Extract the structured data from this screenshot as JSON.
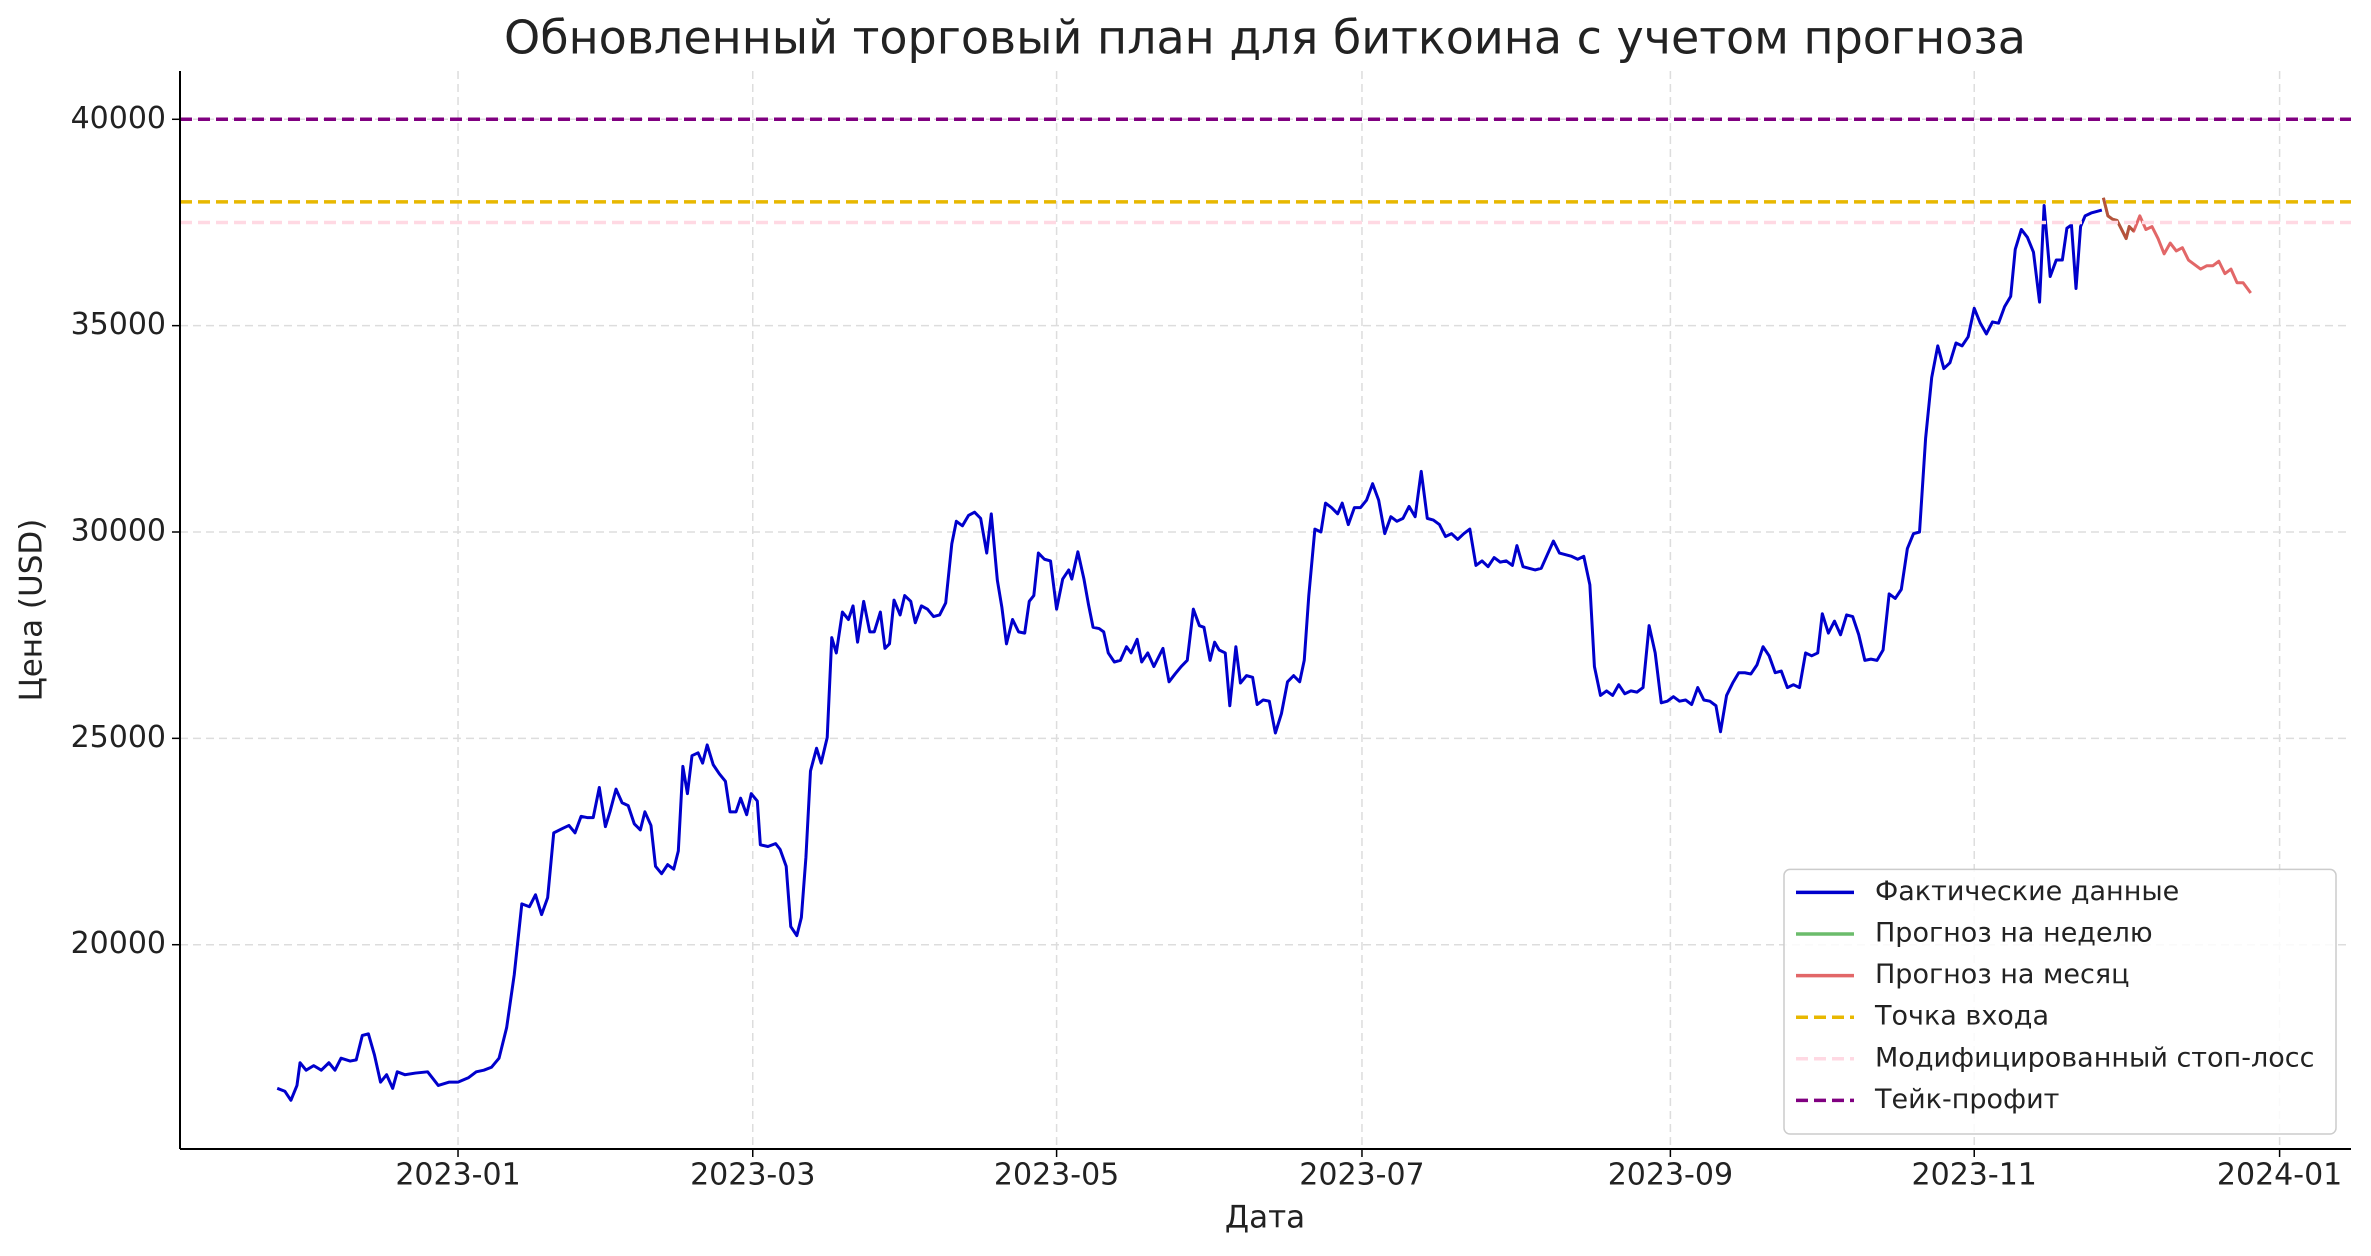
{
  "chart_data": {
    "type": "line",
    "title": "Обновленный торговый план для биткоина с учетом прогноза",
    "xlabel": "Дата",
    "ylabel": "Цена (USD)",
    "xlim": [
      -0.83,
      13.46
    ],
    "xticks": [
      {
        "value": 1.0,
        "label": "2023-01"
      },
      {
        "value": 2.94,
        "label": "2023-03"
      },
      {
        "value": 4.94,
        "label": "2023-05"
      },
      {
        "value": 6.95,
        "label": "2023-07"
      },
      {
        "value": 8.98,
        "label": "2023-09"
      },
      {
        "value": 10.98,
        "label": "2023-11"
      },
      {
        "value": 12.99,
        "label": "2024-01"
      }
    ],
    "ylim": [
      15050,
      41170
    ],
    "yticks": [
      20000,
      25000,
      30000,
      35000,
      40000
    ],
    "grid": true,
    "legend": "lower right",
    "series": [
      {
        "name": "Фактические данные",
        "color": "#0000cc",
        "alpha": 1,
        "x": [
          -0.19,
          -0.14,
          -0.1,
          -0.06,
          -0.04,
          0.0,
          0.05,
          0.1,
          0.15,
          0.19,
          0.23,
          0.29,
          0.33,
          0.37,
          0.41,
          0.45,
          0.49,
          0.53,
          0.57,
          0.6,
          0.65,
          0.72,
          0.8,
          0.87,
          0.94,
          1.0,
          1.07,
          1.12,
          1.17,
          1.22,
          1.27,
          1.32,
          1.37,
          1.42,
          1.47,
          1.51,
          1.55,
          1.59,
          1.63,
          1.69,
          1.73,
          1.77,
          1.81,
          1.85,
          1.89,
          1.93,
          1.97,
          2.0,
          2.04,
          2.08,
          2.12,
          2.16,
          2.2,
          2.23,
          2.27,
          2.3,
          2.34,
          2.38,
          2.42,
          2.45,
          2.48,
          2.51,
          2.54,
          2.58,
          2.61,
          2.64,
          2.68,
          2.72,
          2.76,
          2.79,
          2.83,
          2.86,
          2.9,
          2.93,
          2.97,
          2.99,
          3.04,
          3.09,
          3.12,
          3.16,
          3.19,
          3.23,
          3.26,
          3.29,
          3.32,
          3.36,
          3.39,
          3.43,
          3.46,
          3.49,
          3.53,
          3.57,
          3.6,
          3.63,
          3.67,
          3.71,
          3.74,
          3.78,
          3.81,
          3.84,
          3.87,
          3.91,
          3.94,
          3.98,
          4.01,
          4.05,
          4.09,
          4.13,
          4.17,
          4.21,
          4.25,
          4.28,
          4.32,
          4.36,
          4.4,
          4.44,
          4.48,
          4.51,
          4.55,
          4.58,
          4.61,
          4.65,
          4.69,
          4.73,
          4.76,
          4.79,
          4.82,
          4.86,
          4.9,
          4.94,
          4.98,
          5.02,
          5.04,
          5.08,
          5.12,
          5.15,
          5.18,
          5.22,
          5.25,
          5.28,
          5.32,
          5.36,
          5.4,
          5.43,
          5.47,
          5.5,
          5.54,
          5.58,
          5.64,
          5.68,
          5.72,
          5.76,
          5.8,
          5.84,
          5.88,
          5.91,
          5.95,
          5.98,
          6.01,
          6.05,
          6.08,
          6.12,
          6.15,
          6.19,
          6.23,
          6.26,
          6.3,
          6.34,
          6.38,
          6.42,
          6.46,
          6.5,
          6.54,
          6.57,
          6.6,
          6.64,
          6.68,
          6.71,
          6.75,
          6.79,
          6.82,
          6.86,
          6.9,
          6.94,
          6.98,
          7.02,
          7.06,
          7.1,
          7.14,
          7.18,
          7.22,
          7.26,
          7.3,
          7.34,
          7.38,
          7.42,
          7.46,
          7.5,
          7.54,
          7.58,
          7.62,
          7.66,
          7.7,
          7.74,
          7.78,
          7.82,
          7.86,
          7.9,
          7.94,
          7.97,
          8.01,
          8.05,
          8.09,
          8.13,
          8.17,
          8.21,
          8.25,
          8.29,
          8.33,
          8.37,
          8.41,
          8.45,
          8.48,
          8.52,
          8.56,
          8.6,
          8.64,
          8.68,
          8.72,
          8.76,
          8.8,
          8.84,
          8.88,
          8.92,
          8.96,
          9.0,
          9.04,
          9.08,
          9.12,
          9.16,
          9.2,
          9.24,
          9.28,
          9.31,
          9.35,
          9.39,
          9.43,
          9.47,
          9.51,
          9.55,
          9.59,
          9.63,
          9.67,
          9.71,
          9.75,
          9.79,
          9.83,
          9.87,
          9.91,
          9.95,
          9.98,
          10.02,
          10.06,
          10.1,
          10.14,
          10.18,
          10.22,
          10.26,
          10.3,
          10.34,
          10.38,
          10.42,
          10.46,
          10.5,
          10.54,
          10.58,
          10.62,
          10.66,
          10.7,
          10.74,
          10.78,
          10.82,
          10.86,
          10.9,
          10.94,
          10.98,
          11.02,
          11.06,
          11.1,
          11.14,
          11.18,
          11.22,
          11.25,
          11.29,
          11.33,
          11.37,
          11.41,
          11.44,
          11.48,
          11.52,
          11.56,
          11.59,
          11.62,
          11.65,
          11.68,
          11.71,
          11.75,
          11.79,
          11.82
        ],
        "values": [
          16520,
          16450,
          16230,
          16590,
          17140,
          16960,
          17070,
          16960,
          17140,
          16960,
          17250,
          17180,
          17210,
          17800,
          17840,
          17330,
          16670,
          16850,
          16520,
          16920,
          16850,
          16890,
          16920,
          16590,
          16670,
          16670,
          16780,
          16920,
          16960,
          17030,
          17250,
          17990,
          19270,
          20990,
          20920,
          21210,
          20730,
          21140,
          22710,
          22820,
          22890,
          22710,
          23110,
          23080,
          23080,
          23810,
          22860,
          23220,
          23770,
          23440,
          23370,
          22930,
          22780,
          23220,
          22890,
          21900,
          21720,
          21940,
          21830,
          22270,
          24320,
          23660,
          24580,
          24650,
          24400,
          24840,
          24360,
          24140,
          23960,
          23220,
          23220,
          23550,
          23150,
          23660,
          23480,
          22420,
          22380,
          22450,
          22310,
          21900,
          20440,
          20220,
          20660,
          22120,
          24210,
          24760,
          24400,
          25020,
          27440,
          27070,
          28060,
          27880,
          28210,
          27330,
          28320,
          27580,
          27580,
          28060,
          27180,
          27290,
          28350,
          27990,
          28460,
          28320,
          27800,
          28210,
          28130,
          27950,
          27990,
          28280,
          29710,
          30260,
          30150,
          30400,
          30480,
          30330,
          29490,
          30440,
          28830,
          28170,
          27290,
          27880,
          27580,
          27550,
          28320,
          28460,
          29490,
          29340,
          29300,
          28130,
          28860,
          29080,
          28860,
          29520,
          28860,
          28240,
          27690,
          27660,
          27580,
          27070,
          26850,
          26890,
          27220,
          27070,
          27400,
          26850,
          27070,
          26740,
          27180,
          26370,
          26560,
          26740,
          26890,
          28130,
          27730,
          27690,
          26890,
          27330,
          27140,
          27070,
          25790,
          27220,
          26340,
          26520,
          26480,
          25820,
          25930,
          25900,
          25130,
          25600,
          26370,
          26520,
          26370,
          26890,
          28460,
          30070,
          30000,
          30700,
          30590,
          30440,
          30700,
          30180,
          30590,
          30590,
          30770,
          31170,
          30770,
          29960,
          30370,
          30260,
          30330,
          30620,
          30370,
          31470,
          30330,
          30290,
          30180,
          29890,
          29960,
          29820,
          29960,
          30070,
          29190,
          29300,
          29160,
          29380,
          29270,
          29300,
          29190,
          29670,
          29160,
          29120,
          29080,
          29120,
          29450,
          29780,
          29490,
          29450,
          29410,
          29340,
          29410,
          28720,
          26740,
          26040,
          26150,
          26040,
          26300,
          26080,
          26150,
          26120,
          26230,
          27730,
          27070,
          25860,
          25900,
          26010,
          25900,
          25930,
          25820,
          26230,
          25930,
          25900,
          25790,
          25160,
          26040,
          26340,
          26590,
          26590,
          26560,
          26780,
          27220,
          27000,
          26590,
          26630,
          26230,
          26300,
          26230,
          27070,
          27000,
          27070,
          28020,
          27550,
          27840,
          27510,
          27990,
          27950,
          27510,
          26890,
          26920,
          26890,
          27140,
          28500,
          28390,
          28610,
          29600,
          29960,
          30000,
          32270,
          33740,
          34510,
          33960,
          34100,
          34580,
          34510,
          34730,
          35420,
          35060,
          34800,
          35090,
          35060,
          35460,
          35710,
          36850,
          37330,
          37140,
          36780,
          35570,
          37910,
          36190,
          36590,
          36590,
          37360,
          37440,
          35900,
          37400,
          37660,
          37730,
          37770,
          37800
        ]
      },
      {
        "name": "Прогноз на неделю",
        "color": "#2ca02c",
        "alpha": 0.7,
        "x": [
          11.83,
          11.86,
          11.89,
          11.92,
          11.95,
          11.98,
          12.0,
          12.03
        ],
        "values": [
          38100,
          37660,
          37580,
          37550,
          37330,
          37110,
          37400,
          37290
        ]
      },
      {
        "name": "Прогноз на месяц",
        "color": "#d62728",
        "alpha": 0.7,
        "x": [
          11.83,
          11.86,
          11.89,
          11.92,
          11.95,
          11.98,
          12.0,
          12.03,
          12.07,
          12.11,
          12.15,
          12.19,
          12.23,
          12.27,
          12.31,
          12.35,
          12.39,
          12.43,
          12.47,
          12.51,
          12.55,
          12.59,
          12.63,
          12.67,
          12.71,
          12.75,
          12.8
        ],
        "values": [
          38100,
          37660,
          37580,
          37550,
          37330,
          37110,
          37400,
          37290,
          37660,
          37330,
          37400,
          37110,
          36740,
          37000,
          36810,
          36890,
          36590,
          36480,
          36370,
          36450,
          36450,
          36560,
          36260,
          36370,
          36040,
          36040,
          35790
        ]
      }
    ],
    "hlines": [
      {
        "name": "Точка входа",
        "color": "#e8b800",
        "value": 38000
      },
      {
        "name": "Модифицированный стоп-лосс",
        "color": "#ffd9e3",
        "value": 37500
      },
      {
        "name": "Тейк-профит",
        "color": "#800080",
        "value": 40000
      }
    ]
  }
}
